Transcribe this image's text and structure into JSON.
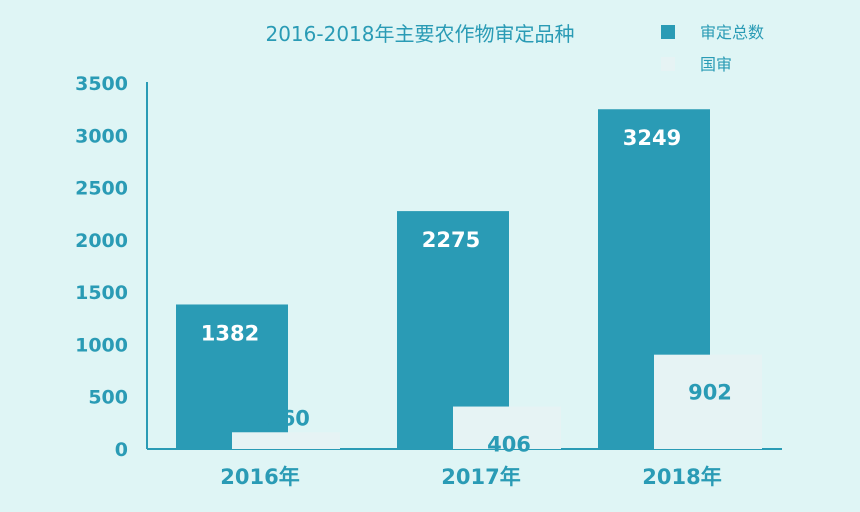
{
  "chart_data": {
    "type": "bar",
    "title": "2016-2018年主要农作物审定品种",
    "categories": [
      "2016年",
      "2017年",
      "2018年"
    ],
    "series": [
      {
        "name": "审定总数",
        "values": [
          1382,
          2275,
          3249
        ],
        "color": "#2a9bb5"
      },
      {
        "name": "国审",
        "values": [
          160,
          406,
          902
        ],
        "color": "#e6f3f4"
      }
    ],
    "y_ticks": [
      "0",
      "500",
      "1000",
      "1500",
      "2000",
      "2500",
      "3000",
      "3500"
    ],
    "ylim": [
      0,
      3500
    ],
    "legend_position": "top-right",
    "grid": false
  }
}
